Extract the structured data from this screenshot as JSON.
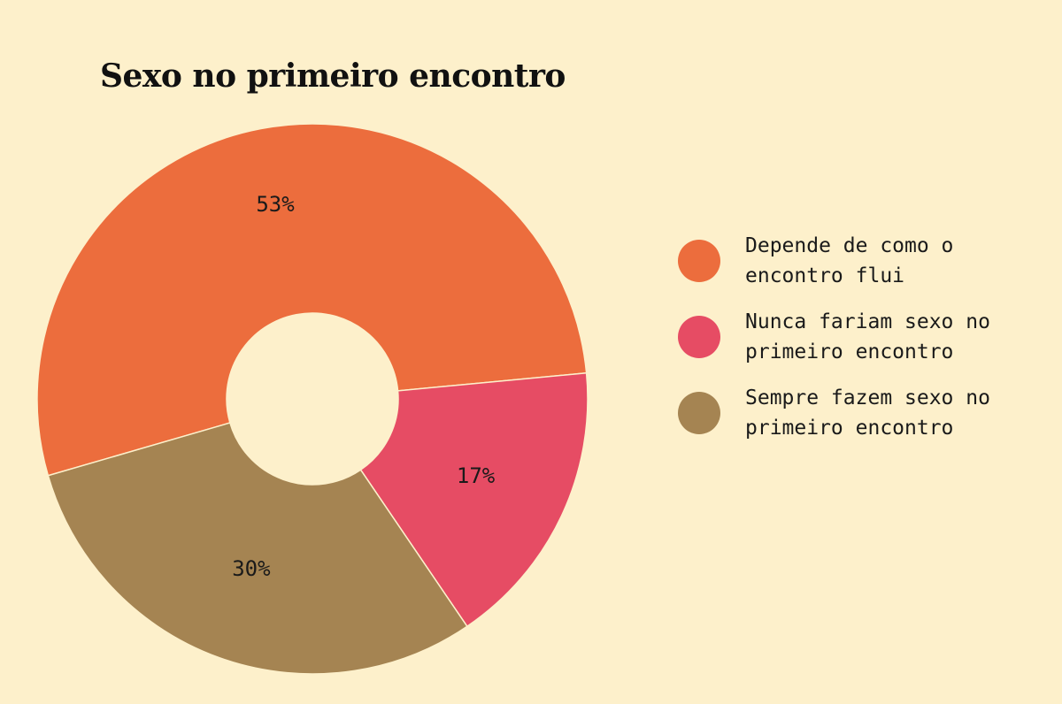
{
  "chart_data": {
    "type": "pie",
    "title": "Sexo no primeiro encontro",
    "slices": [
      {
        "label": "Depende de como o encontro flui",
        "value": 53,
        "display": "53%",
        "color": "#ec6d3d"
      },
      {
        "label": "Nunca fariam sexo no primeiro encontro",
        "value": 17,
        "display": "17%",
        "color": "#e64c64"
      },
      {
        "label": "Sempre fazem sexo no primeiro encontro",
        "value": 30,
        "display": "30%",
        "color": "#a58452"
      }
    ],
    "donut": true,
    "legend_position": "right",
    "background": "#fdf0cb"
  }
}
